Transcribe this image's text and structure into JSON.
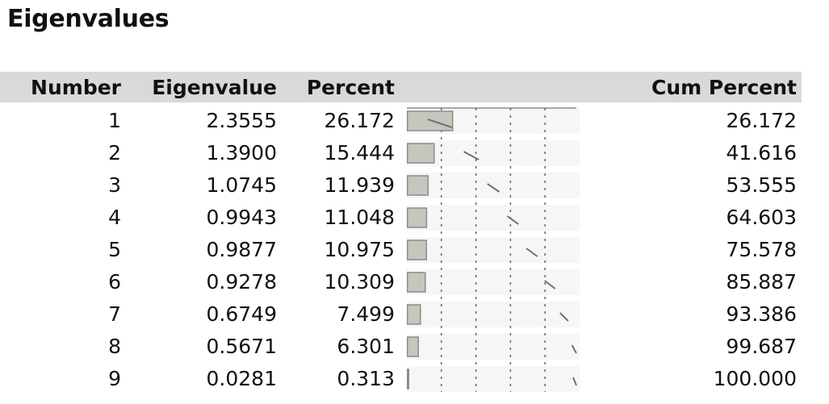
{
  "title": "Eigenvalues",
  "columns": {
    "number": "Number",
    "eigenvalue": "Eigenvalue",
    "percent": "Percent",
    "cum_percent": "Cum Percent"
  },
  "rows": [
    {
      "number": "1",
      "eigenvalue": "2.3555",
      "percent": "26.172",
      "cum_percent": "26.172"
    },
    {
      "number": "2",
      "eigenvalue": "1.3900",
      "percent": "15.444",
      "cum_percent": "41.616"
    },
    {
      "number": "3",
      "eigenvalue": "1.0745",
      "percent": "11.939",
      "cum_percent": "53.555"
    },
    {
      "number": "4",
      "eigenvalue": "0.9943",
      "percent": "11.048",
      "cum_percent": "64.603"
    },
    {
      "number": "5",
      "eigenvalue": "0.9877",
      "percent": "10.975",
      "cum_percent": "75.578"
    },
    {
      "number": "6",
      "eigenvalue": "0.9278",
      "percent": "10.309",
      "cum_percent": "85.887"
    },
    {
      "number": "7",
      "eigenvalue": "0.6749",
      "percent": "7.499",
      "cum_percent": "93.386"
    },
    {
      "number": "8",
      "eigenvalue": "0.5671",
      "percent": "6.301",
      "cum_percent": "99.687"
    },
    {
      "number": "9",
      "eigenvalue": "0.0281",
      "percent": "0.313",
      "cum_percent": "100.000"
    }
  ],
  "colors": {
    "header_band": "#d9d9d9",
    "bar_fill": "#c6c6bf",
    "bar_stroke": "#8c8c84",
    "cell_bg": "#f6f6f6",
    "grid_dash": "#666666",
    "cum_marker": "#707070"
  },
  "chart_data": {
    "type": "bar",
    "orientation": "horizontal",
    "categories": [
      "1",
      "2",
      "3",
      "4",
      "5",
      "6",
      "7",
      "8",
      "9"
    ],
    "values": [
      26.172,
      15.444,
      11.939,
      11.048,
      10.975,
      10.309,
      7.499,
      6.301,
      0.313
    ],
    "cumulative": [
      26.172,
      41.616,
      53.555,
      64.603,
      75.578,
      85.887,
      93.386,
      99.687,
      100.0
    ],
    "xlim": [
      0,
      100
    ],
    "grid": "dashed vertical lines at 20, 40, 60, 80",
    "title": "",
    "xlabel": "",
    "ylabel": ""
  }
}
